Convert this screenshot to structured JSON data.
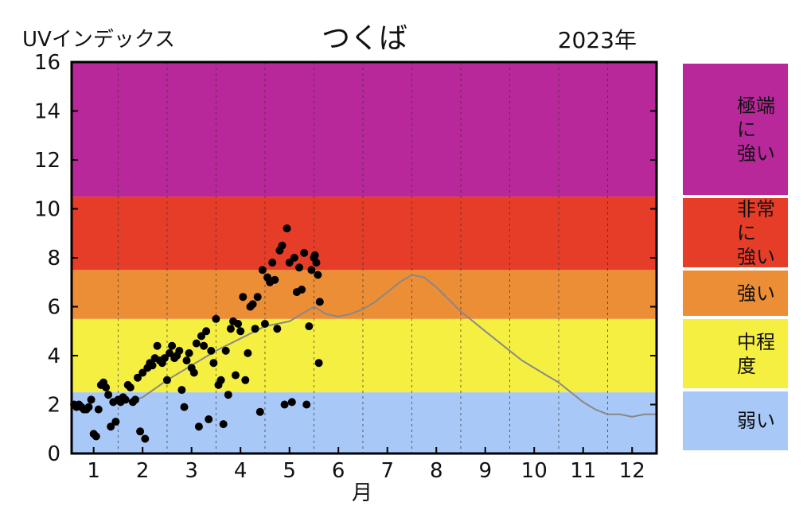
{
  "ylabel": "UVインデックス",
  "title": "つくば",
  "year_label": "2023年",
  "xlabel": "月",
  "legend": [
    {
      "label": "極端に\n強い",
      "color": "#b8289a",
      "range": [
        10.5,
        16
      ]
    },
    {
      "label": "非常に\n強い",
      "color": "#e63d29",
      "range": [
        7.5,
        10.5
      ]
    },
    {
      "label": "強い",
      "color": "#ec8e36",
      "range": [
        5.5,
        7.5
      ]
    },
    {
      "label": "中程度",
      "color": "#f5ef42",
      "range": [
        2.5,
        5.5
      ]
    },
    {
      "label": "弱い",
      "color": "#a8c8f8",
      "range": [
        0,
        2.5
      ]
    }
  ],
  "chart_data": {
    "type": "scatter",
    "title": "つくば",
    "xlabel": "月",
    "ylabel": "UVインデックス",
    "xlim": [
      0.55,
      12.5
    ],
    "ylim": [
      0,
      16
    ],
    "yticks": [
      0,
      2,
      4,
      6,
      8,
      10,
      12,
      14,
      16
    ],
    "xticks": [
      1,
      2,
      3,
      4,
      5,
      6,
      7,
      8,
      9,
      10,
      11,
      12
    ],
    "grid": "vertical-dashed",
    "series": [
      {
        "type": "scatter",
        "color": "#000000",
        "points": [
          [
            0.6,
            2.0
          ],
          [
            0.65,
            1.9
          ],
          [
            0.7,
            2.0
          ],
          [
            0.75,
            1.9
          ],
          [
            0.8,
            1.8
          ],
          [
            0.85,
            1.8
          ],
          [
            0.9,
            1.9
          ],
          [
            0.95,
            2.2
          ],
          [
            1.0,
            0.8
          ],
          [
            1.05,
            0.7
          ],
          [
            1.1,
            1.8
          ],
          [
            1.15,
            2.8
          ],
          [
            1.2,
            2.9
          ],
          [
            1.25,
            2.7
          ],
          [
            1.3,
            2.4
          ],
          [
            1.35,
            1.1
          ],
          [
            1.4,
            2.1
          ],
          [
            1.45,
            1.3
          ],
          [
            1.5,
            2.2
          ],
          [
            1.55,
            2.1
          ],
          [
            1.6,
            2.3
          ],
          [
            1.65,
            2.2
          ],
          [
            1.7,
            2.8
          ],
          [
            1.75,
            2.7
          ],
          [
            1.8,
            2.1
          ],
          [
            1.85,
            2.2
          ],
          [
            1.9,
            3.1
          ],
          [
            1.95,
            0.9
          ],
          [
            2.0,
            3.3
          ],
          [
            2.05,
            0.6
          ],
          [
            2.1,
            3.5
          ],
          [
            2.15,
            3.7
          ],
          [
            2.2,
            3.6
          ],
          [
            2.25,
            3.9
          ],
          [
            2.3,
            4.4
          ],
          [
            2.35,
            3.8
          ],
          [
            2.4,
            3.7
          ],
          [
            2.45,
            3.9
          ],
          [
            2.5,
            3.0
          ],
          [
            2.55,
            4.1
          ],
          [
            2.6,
            4.4
          ],
          [
            2.65,
            3.9
          ],
          [
            2.7,
            4.0
          ],
          [
            2.75,
            4.2
          ],
          [
            2.8,
            2.6
          ],
          [
            2.85,
            1.9
          ],
          [
            2.9,
            3.8
          ],
          [
            2.95,
            4.1
          ],
          [
            3.0,
            3.5
          ],
          [
            3.05,
            3.3
          ],
          [
            3.1,
            4.5
          ],
          [
            3.15,
            1.1
          ],
          [
            3.2,
            4.8
          ],
          [
            3.25,
            4.4
          ],
          [
            3.3,
            5.0
          ],
          [
            3.35,
            1.4
          ],
          [
            3.4,
            4.2
          ],
          [
            3.45,
            3.7
          ],
          [
            3.5,
            5.5
          ],
          [
            3.55,
            2.8
          ],
          [
            3.6,
            3.0
          ],
          [
            3.65,
            1.2
          ],
          [
            3.7,
            4.2
          ],
          [
            3.75,
            2.4
          ],
          [
            3.8,
            5.1
          ],
          [
            3.85,
            5.4
          ],
          [
            3.9,
            3.2
          ],
          [
            3.95,
            5.3
          ],
          [
            4.0,
            5.0
          ],
          [
            4.05,
            6.4
          ],
          [
            4.1,
            3.0
          ],
          [
            4.15,
            4.1
          ],
          [
            4.2,
            6.0
          ],
          [
            4.25,
            6.1
          ],
          [
            4.3,
            5.1
          ],
          [
            4.35,
            6.4
          ],
          [
            4.4,
            1.7
          ],
          [
            4.45,
            7.5
          ],
          [
            4.5,
            5.3
          ],
          [
            4.55,
            7.2
          ],
          [
            4.6,
            7.0
          ],
          [
            4.65,
            7.8
          ],
          [
            4.7,
            7.1
          ],
          [
            4.75,
            5.1
          ],
          [
            4.8,
            8.3
          ],
          [
            4.85,
            8.5
          ],
          [
            4.9,
            2.0
          ],
          [
            4.95,
            9.2
          ],
          [
            5.0,
            7.8
          ],
          [
            5.05,
            2.1
          ],
          [
            5.1,
            8.0
          ],
          [
            5.15,
            6.6
          ],
          [
            5.2,
            7.6
          ],
          [
            5.25,
            6.7
          ],
          [
            5.3,
            8.2
          ],
          [
            5.35,
            2.0
          ],
          [
            5.4,
            5.2
          ],
          [
            5.45,
            7.5
          ],
          [
            5.5,
            8.0
          ],
          [
            5.55,
            7.8
          ],
          [
            5.6,
            3.7
          ],
          [
            5.62,
            6.2
          ],
          [
            5.58,
            7.3
          ],
          [
            5.52,
            8.1
          ]
        ]
      },
      {
        "type": "line",
        "color": "#888888",
        "name": "",
        "points": [
          [
            1.5,
            2.0
          ],
          [
            2.0,
            2.3
          ],
          [
            2.5,
            3.0
          ],
          [
            3.0,
            3.6
          ],
          [
            3.5,
            4.2
          ],
          [
            4.0,
            4.7
          ],
          [
            4.5,
            5.2
          ],
          [
            4.75,
            5.3
          ],
          [
            5.0,
            5.4
          ],
          [
            5.25,
            5.7
          ],
          [
            5.5,
            6.0
          ],
          [
            5.75,
            5.7
          ],
          [
            6.0,
            5.6
          ],
          [
            6.25,
            5.7
          ],
          [
            6.5,
            5.9
          ],
          [
            6.75,
            6.2
          ],
          [
            7.0,
            6.6
          ],
          [
            7.25,
            7.0
          ],
          [
            7.5,
            7.3
          ],
          [
            7.75,
            7.2
          ],
          [
            8.0,
            6.8
          ],
          [
            8.25,
            6.3
          ],
          [
            8.5,
            5.8
          ],
          [
            8.75,
            5.4
          ],
          [
            9.0,
            5.0
          ],
          [
            9.25,
            4.6
          ],
          [
            9.5,
            4.2
          ],
          [
            9.75,
            3.8
          ],
          [
            10.0,
            3.5
          ],
          [
            10.25,
            3.2
          ],
          [
            10.5,
            2.9
          ],
          [
            10.75,
            2.5
          ],
          [
            11.0,
            2.1
          ],
          [
            11.25,
            1.8
          ],
          [
            11.5,
            1.6
          ],
          [
            11.75,
            1.6
          ],
          [
            12.0,
            1.5
          ],
          [
            12.25,
            1.6
          ],
          [
            12.5,
            1.6
          ]
        ]
      }
    ]
  }
}
